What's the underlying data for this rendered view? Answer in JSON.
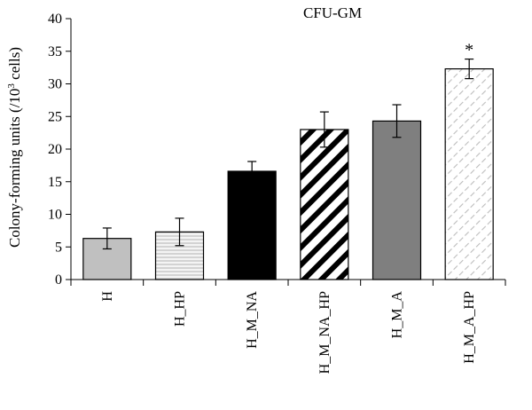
{
  "chart_data": {
    "type": "bar",
    "title": "CFU-GM",
    "ylabel_main": "Colony-forming units (/10",
    "ylabel_sup": "3",
    "ylabel_end": " cells)",
    "xlabel": "",
    "ylim": [
      0,
      40
    ],
    "yticks": [
      0,
      5,
      10,
      15,
      20,
      25,
      30,
      35,
      40
    ],
    "yticks_text": [
      "0",
      "5",
      "10",
      "15",
      "20",
      "25",
      "30",
      "35",
      "40"
    ],
    "grid": false,
    "categories": [
      "H",
      "H_HP",
      "H_M_NA",
      "H_M_NA_HP",
      "H_M_A",
      "H_M_A_HP"
    ],
    "values": [
      6.3,
      7.3,
      16.6,
      23.0,
      24.3,
      32.3
    ],
    "errors": [
      1.6,
      2.1,
      1.5,
      2.7,
      2.5,
      1.5
    ],
    "annotations": [
      "",
      "",
      "",
      "",
      "",
      "*"
    ],
    "bar_styles": [
      {
        "fill": "#c0c0c0",
        "pattern": "none"
      },
      {
        "fill": "#f4f4f4",
        "pattern": "horizontal-lines",
        "line_color": "#bdbdbd"
      },
      {
        "fill": "#000000",
        "pattern": "none"
      },
      {
        "fill": "#ffffff",
        "pattern": "diagonal-stripes",
        "line_color": "#000000"
      },
      {
        "fill": "#7f7f7f",
        "pattern": "none"
      },
      {
        "fill": "#ffffff",
        "pattern": "diagonal-dashes",
        "line_color": "#bdbdbd"
      }
    ]
  }
}
